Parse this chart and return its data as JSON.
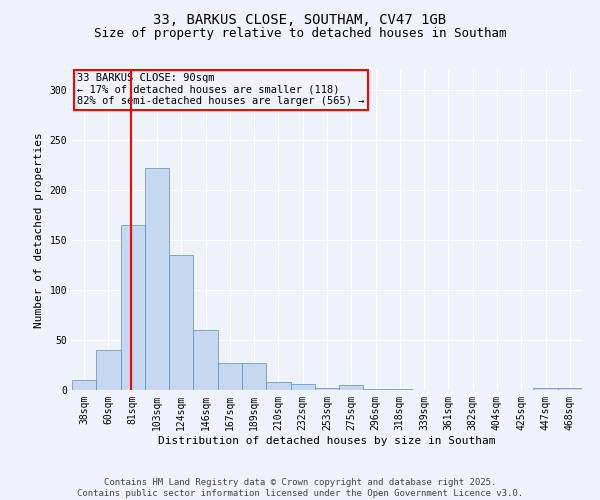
{
  "title1": "33, BARKUS CLOSE, SOUTHAM, CV47 1GB",
  "title2": "Size of property relative to detached houses in Southam",
  "xlabel": "Distribution of detached houses by size in Southam",
  "ylabel": "Number of detached properties",
  "categories": [
    "38sqm",
    "60sqm",
    "81sqm",
    "103sqm",
    "124sqm",
    "146sqm",
    "167sqm",
    "189sqm",
    "210sqm",
    "232sqm",
    "253sqm",
    "275sqm",
    "296sqm",
    "318sqm",
    "339sqm",
    "361sqm",
    "382sqm",
    "404sqm",
    "425sqm",
    "447sqm",
    "468sqm"
  ],
  "values": [
    10,
    40,
    165,
    222,
    135,
    60,
    27,
    27,
    8,
    6,
    2,
    5,
    1,
    1,
    0,
    0,
    0,
    0,
    0,
    2,
    2
  ],
  "bar_color": "#c5d8f0",
  "bar_edge_color": "#5a8fc2",
  "vline_color": "red",
  "annotation_box_text": "33 BARKUS CLOSE: 90sqm\n← 17% of detached houses are smaller (118)\n82% of semi-detached houses are larger (565) →",
  "annotation_box_color": "red",
  "footer": "Contains HM Land Registry data © Crown copyright and database right 2025.\nContains public sector information licensed under the Open Government Licence v3.0.",
  "ylim": [
    0,
    320
  ],
  "yticks": [
    0,
    50,
    100,
    150,
    200,
    250,
    300
  ],
  "bg_color": "#eef2f9",
  "grid_color": "white",
  "title_fontsize": 10,
  "subtitle_fontsize": 9,
  "axis_label_fontsize": 8,
  "tick_fontsize": 7,
  "footer_fontsize": 6.5,
  "annot_fontsize": 7.5
}
